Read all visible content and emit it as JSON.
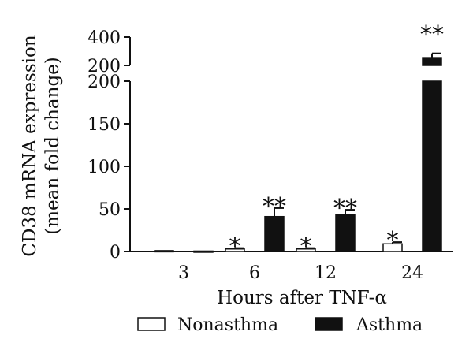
{
  "chart_data": {
    "type": "bar",
    "title": "",
    "xlabel": "Hours after TNF-α",
    "ylabel": "CD38 mRNA expression",
    "ylabel_line2": "(mean fold change)",
    "categories": [
      "3",
      "6",
      "12",
      "24"
    ],
    "y_axis": {
      "broken": true,
      "lower_range": [
        0,
        200
      ],
      "lower_ticks": [
        "0",
        "50",
        "100",
        "150",
        "200"
      ],
      "upper_range": [
        200,
        400
      ],
      "upper_ticks": [
        "200",
        "400"
      ]
    },
    "series": [
      {
        "name": "Nonasthma",
        "color": "#ffffff",
        "values": [
          1,
          3,
          3,
          9
        ],
        "errors": [
          0,
          1,
          1,
          2
        ],
        "significance": [
          "",
          "*",
          "*",
          "*"
        ]
      },
      {
        "name": "Asthma",
        "color": "#111111",
        "values": [
          0.5,
          41,
          43,
          255
        ],
        "errors": [
          0,
          10,
          6,
          30
        ],
        "significance": [
          "",
          "**",
          "**",
          "**"
        ]
      }
    ],
    "legend_position": "bottom"
  }
}
